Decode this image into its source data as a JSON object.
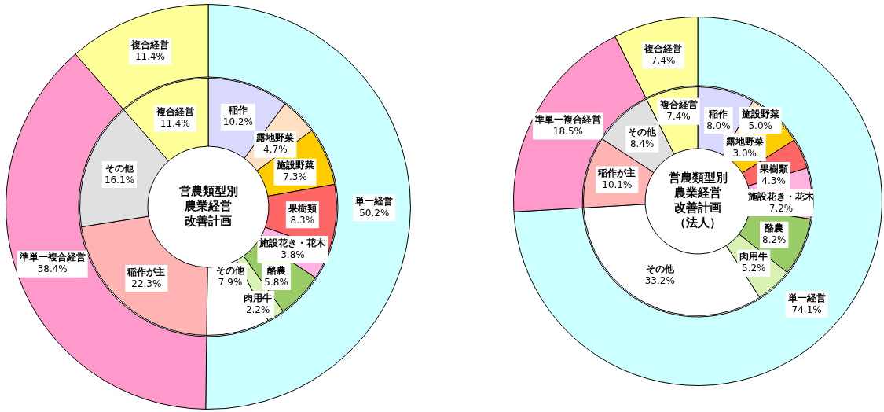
{
  "chart_data": [
    {
      "type": "donut",
      "categories": [
        "単一経営",
        "準単一複合経営",
        "複合経営"
      ],
      "values": [
        50.2,
        38.4,
        11.4
      ],
      "colors": [
        "#ccffff",
        "#ff99cc",
        "#ffff99"
      ],
      "value_labels": [
        "50.2%",
        "38.4%",
        "11.4%"
      ]
    },
    {
      "type": "donut",
      "title": "営農類型別農業経営改善計画",
      "categories": [
        "稲作",
        "露地野菜",
        "施設野菜",
        "果樹類",
        "施設花き・花木",
        "酪農",
        "肉用牛",
        "その他",
        "稲作が主",
        "その他",
        "複合経営"
      ],
      "values": [
        10.2,
        4.7,
        7.3,
        8.3,
        3.8,
        5.8,
        2.2,
        7.9,
        22.3,
        16.1,
        11.4
      ],
      "colors": [
        "#d9d9ff",
        "#ffe0c0",
        "#ffcc00",
        "#ff6666",
        "#ffb3e0",
        "#99cc66",
        "#d9f2b3",
        "#ffffff",
        "#ffb3b3",
        "#e0e0e0",
        "#ffff99"
      ],
      "value_labels": [
        "10.2%",
        "4.7%",
        "7.3%",
        "8.3%",
        "3.8%",
        "5.8%",
        "2.2%",
        "7.9%",
        "22.3%",
        "16.1%",
        "11.4%"
      ]
    },
    {
      "type": "donut",
      "categories": [
        "単一経営",
        "準単一複合経営",
        "複合経営"
      ],
      "values": [
        74.1,
        18.5,
        7.4
      ],
      "colors": [
        "#ccffff",
        "#ff99cc",
        "#ffff99"
      ],
      "value_labels": [
        "74.1%",
        "18.5%",
        "7.4%"
      ]
    },
    {
      "type": "donut",
      "title": "営農類型別農業経営改善計画",
      "subtitle": "（法人）",
      "categories": [
        "稲作",
        "露地野菜",
        "施設野菜",
        "果樹類",
        "施設花き・花木",
        "酪農",
        "肉用牛",
        "その他",
        "稲作が主",
        "その他",
        "複合経営"
      ],
      "values": [
        8.0,
        3.0,
        5.0,
        4.3,
        7.2,
        8.2,
        5.2,
        33.2,
        10.1,
        8.4,
        7.4
      ],
      "colors": [
        "#d9d9ff",
        "#ffe0c0",
        "#ffcc00",
        "#ff6666",
        "#ffb3e0",
        "#99cc66",
        "#d9f2b3",
        "#ffffff",
        "#ffb3b3",
        "#e0e0e0",
        "#ffff99"
      ],
      "value_labels": [
        "8.0%",
        "3.0%",
        "5.0%",
        "4.3%",
        "7.2%",
        "8.2%",
        "5.2%",
        "33.2%",
        "10.1%",
        "8.4%",
        "7.4%"
      ]
    }
  ]
}
